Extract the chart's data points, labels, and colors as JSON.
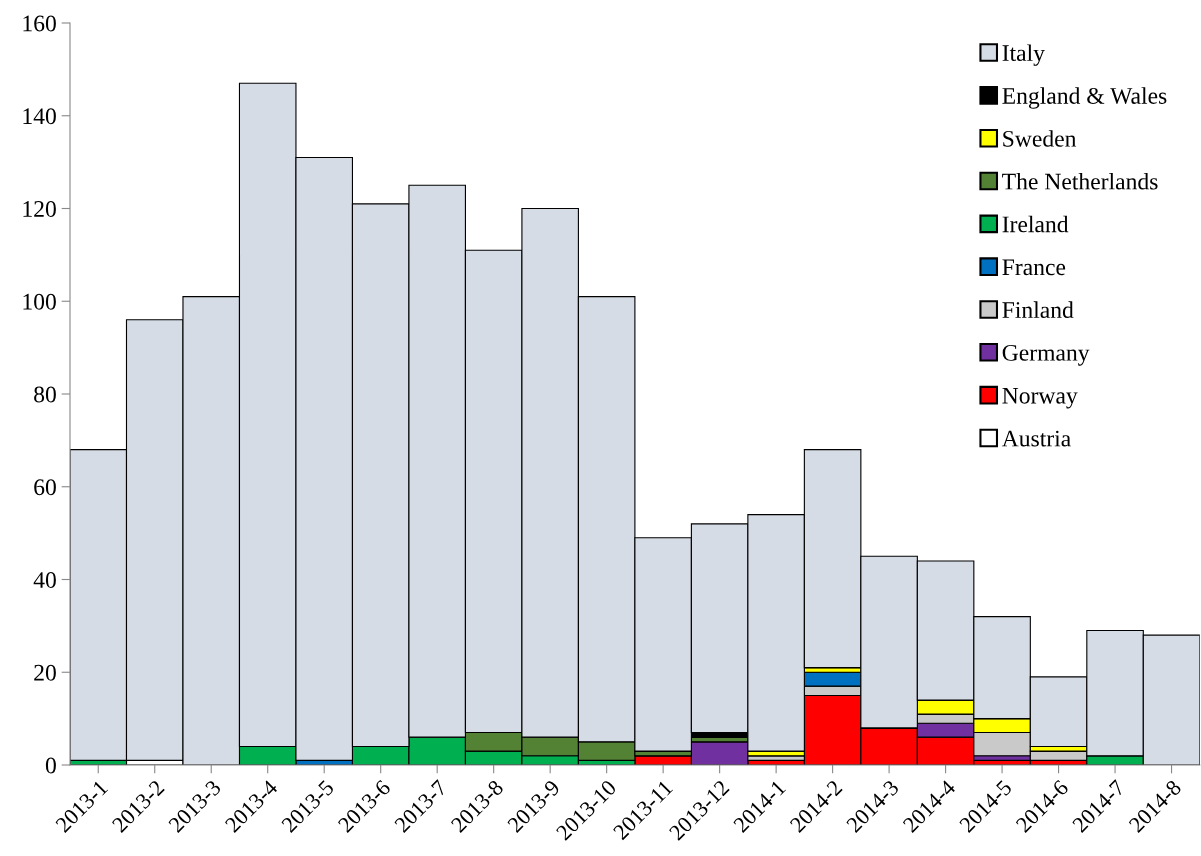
{
  "chart_data": {
    "type": "bar",
    "stacked": true,
    "categories": [
      "2013-1",
      "2013-2",
      "2013-3",
      "2013-4",
      "2013-5",
      "2013-6",
      "2013-7",
      "2013-8",
      "2013-9",
      "2013-10",
      "2013-11",
      "2013-12",
      "2014-1",
      "2014-2",
      "2014-3",
      "2014-4",
      "2014-5",
      "2014-6",
      "2014-7",
      "2014-8"
    ],
    "series": [
      {
        "name": "Austria",
        "color": "#ffffff",
        "values": [
          0,
          1,
          0,
          0,
          0,
          0,
          0,
          0,
          0,
          0,
          0,
          0,
          0,
          0,
          0,
          0,
          0,
          0,
          0,
          0
        ]
      },
      {
        "name": "Norway",
        "color": "#ff0000",
        "values": [
          0,
          0,
          0,
          0,
          0,
          0,
          0,
          0,
          0,
          0,
          2,
          0,
          1,
          15,
          8,
          6,
          1,
          1,
          0,
          0
        ]
      },
      {
        "name": "Germany",
        "color": "#7030a0",
        "values": [
          0,
          0,
          0,
          0,
          0,
          0,
          0,
          0,
          0,
          0,
          0,
          5,
          0,
          0,
          0,
          3,
          1,
          0,
          0,
          0
        ]
      },
      {
        "name": "Finland",
        "color": "#c9c9c9",
        "values": [
          0,
          0,
          0,
          0,
          0,
          0,
          0,
          0,
          0,
          0,
          0,
          0,
          1,
          2,
          0,
          2,
          5,
          2,
          0,
          0
        ]
      },
      {
        "name": "France",
        "color": "#0070c0",
        "values": [
          0,
          0,
          0,
          0,
          1,
          0,
          0,
          0,
          0,
          0,
          0,
          0,
          0,
          3,
          0,
          0,
          0,
          0,
          0,
          0
        ]
      },
      {
        "name": "Ireland",
        "color": "#00b050",
        "values": [
          1,
          0,
          0,
          4,
          0,
          4,
          6,
          3,
          2,
          1,
          0,
          0,
          0,
          0,
          0,
          0,
          0,
          0,
          2,
          0
        ]
      },
      {
        "name": "The Netherlands",
        "color": "#548235",
        "values": [
          0,
          0,
          0,
          0,
          0,
          0,
          0,
          4,
          4,
          4,
          1,
          1,
          0,
          0,
          0,
          0,
          0,
          0,
          0,
          0
        ]
      },
      {
        "name": "Sweden",
        "color": "#ffff00",
        "values": [
          0,
          0,
          0,
          0,
          0,
          0,
          0,
          0,
          0,
          0,
          0,
          0,
          1,
          1,
          0,
          3,
          3,
          1,
          0,
          0
        ]
      },
      {
        "name": "England & Wales",
        "color": "#000000",
        "values": [
          0,
          0,
          0,
          0,
          0,
          0,
          0,
          0,
          0,
          0,
          0,
          1,
          0,
          0,
          0,
          0,
          0,
          0,
          0,
          0
        ]
      },
      {
        "name": "Italy",
        "color": "#d6dce5",
        "values": [
          67,
          95,
          101,
          143,
          130,
          117,
          119,
          104,
          114,
          96,
          46,
          45,
          51,
          47,
          37,
          30,
          22,
          15,
          27,
          28
        ]
      }
    ],
    "ylim": [
      0,
      160
    ],
    "yticks": [
      0,
      20,
      40,
      60,
      80,
      100,
      120,
      140,
      160
    ],
    "grid": false,
    "legend": "top right"
  }
}
